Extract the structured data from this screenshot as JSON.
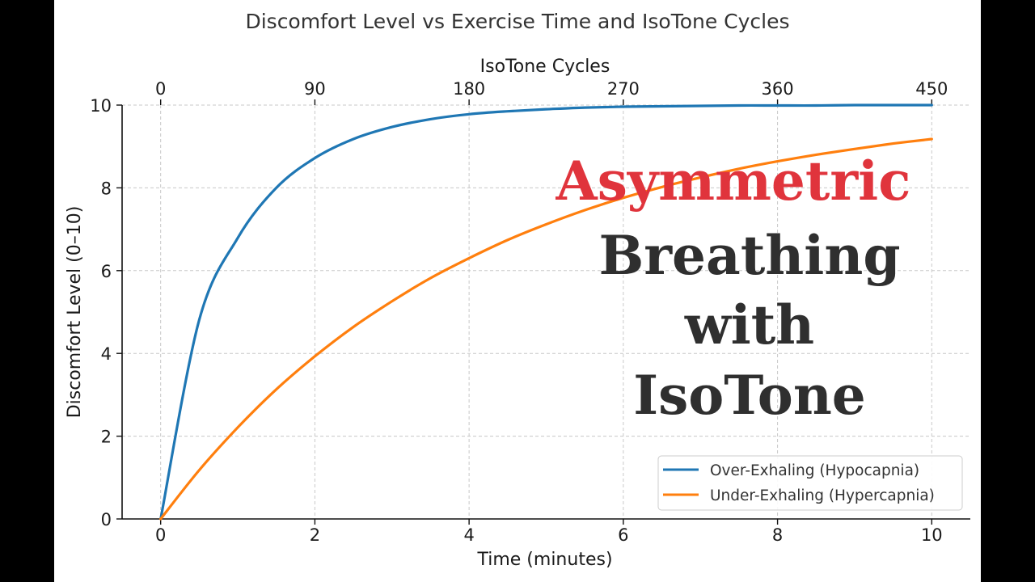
{
  "chart_data": {
    "type": "line",
    "title": "Discomfort Level vs Exercise Time and IsoTone Cycles",
    "xlabel": "Time (minutes)",
    "ylabel": "Discomfort Level (0–10)",
    "x2label": "IsoTone Cycles",
    "xlim": [
      -0.5,
      10.5
    ],
    "ylim": [
      0,
      10
    ],
    "xticks": [
      0,
      2,
      4,
      6,
      8,
      10
    ],
    "yticks": [
      0,
      2,
      4,
      6,
      8,
      10
    ],
    "x2ticks": [
      0,
      90,
      180,
      270,
      360,
      450
    ],
    "grid": true,
    "legend_position": "bottom-right",
    "x": [
      0,
      0.5,
      1,
      1.5,
      2,
      2.5,
      3,
      3.5,
      4,
      4.5,
      5,
      5.5,
      6,
      6.5,
      7,
      7.5,
      8,
      8.5,
      9,
      9.5,
      10
    ],
    "series": [
      {
        "name": "Over-Exhaling (Hypocapnia)",
        "color": "#1f77b4",
        "values": [
          0,
          4.81,
          6.79,
          8.0,
          8.72,
          9.18,
          9.47,
          9.66,
          9.78,
          9.85,
          9.9,
          9.94,
          9.96,
          9.97,
          9.98,
          9.99,
          9.99,
          9.99,
          10.0,
          10.0,
          10.0
        ]
      },
      {
        "name": "Under-Exhaling (Hypercapnia)",
        "color": "#ff7f0e",
        "values": [
          0,
          1.18,
          2.21,
          3.13,
          3.93,
          4.64,
          5.26,
          5.82,
          6.3,
          6.74,
          7.12,
          7.46,
          7.76,
          8.02,
          8.25,
          8.46,
          8.64,
          8.8,
          8.94,
          9.07,
          9.18
        ]
      }
    ]
  },
  "overlay": {
    "line1": "Asymmetric",
    "line2": "Breathing",
    "line3": "with",
    "line4": "IsoTone",
    "accent_color": "#e0343c",
    "text_color": "#2f2f2f"
  },
  "colors": {
    "side_bars": "#000000",
    "background": "#ffffff",
    "grid": "#c8c8c8"
  }
}
